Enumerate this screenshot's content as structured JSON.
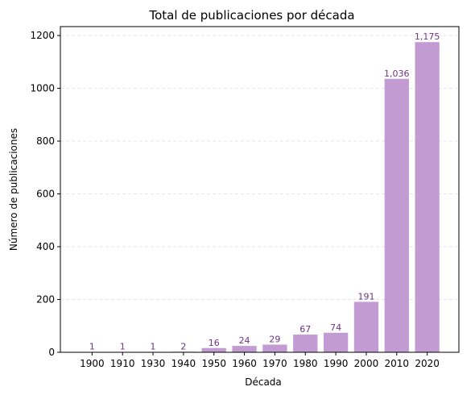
{
  "chart_data": {
    "type": "bar",
    "title": "Total de publicaciones por década",
    "xlabel": "Década",
    "ylabel": "Número de publicaciones",
    "categories": [
      "1900",
      "1910",
      "1930",
      "1940",
      "1950",
      "1960",
      "1970",
      "1980",
      "1990",
      "2000",
      "2010",
      "2020"
    ],
    "values": [
      1,
      1,
      1,
      2,
      16,
      24,
      29,
      67,
      74,
      191,
      1036,
      1175
    ],
    "data_labels": [
      "1",
      "1",
      "1",
      "2",
      "16",
      "24",
      "29",
      "67",
      "74",
      "191",
      "1,036",
      "1,175"
    ],
    "ylim": [
      0,
      1233.75
    ],
    "yticks": [
      0,
      200,
      400,
      600,
      800,
      1000,
      1200
    ],
    "grid": "y-dashed",
    "bar_color": "#c39bd3",
    "label_color": "#6c3483",
    "grid_color": "#e6e6e6"
  }
}
